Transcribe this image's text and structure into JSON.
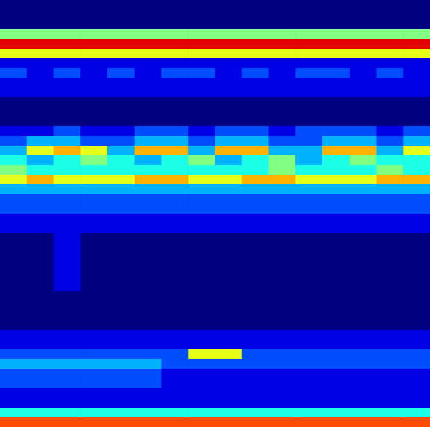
{
  "chart_data": {
    "type": "heatmap",
    "zlim": [
      0,
      10
    ],
    "tick_labels": false,
    "cells": [
      [
        0,
        0,
        0,
        0,
        0,
        0,
        0,
        0,
        0,
        0,
        0,
        0,
        0,
        0,
        0,
        0
      ],
      [
        0,
        0,
        0,
        0,
        0,
        0,
        0,
        0,
        0,
        0,
        0,
        0,
        0,
        0,
        0,
        0
      ],
      [
        0,
        0,
        0,
        0,
        0,
        0,
        0,
        0,
        0,
        0,
        0,
        0,
        0,
        0,
        0,
        0
      ],
      [
        5,
        5,
        5,
        5,
        5,
        5,
        5,
        5,
        5,
        5,
        5,
        5,
        5,
        5,
        5,
        5
      ],
      [
        9,
        9,
        9,
        9,
        9,
        9,
        9,
        9,
        9,
        9,
        9,
        9,
        9,
        9,
        9,
        9
      ],
      [
        6,
        6,
        6,
        6,
        6,
        6,
        6,
        6,
        6,
        6,
        6,
        6,
        6,
        6,
        6,
        6
      ],
      [
        1,
        1,
        1,
        1,
        1,
        1,
        1,
        1,
        1,
        1,
        1,
        1,
        1,
        1,
        1,
        1
      ],
      [
        2,
        1,
        2,
        1,
        2,
        1,
        2,
        2,
        1,
        2,
        1,
        2,
        2,
        1,
        2,
        1
      ],
      [
        1,
        1,
        1,
        1,
        1,
        1,
        1,
        1,
        1,
        1,
        1,
        1,
        1,
        1,
        1,
        1
      ],
      [
        1,
        1,
        1,
        1,
        1,
        1,
        1,
        1,
        1,
        1,
        1,
        1,
        1,
        1,
        1,
        1
      ],
      [
        0,
        0,
        0,
        0,
        0,
        0,
        0,
        0,
        0,
        0,
        0,
        0,
        0,
        0,
        0,
        0
      ],
      [
        0,
        0,
        0,
        0,
        0,
        0,
        0,
        0,
        0,
        0,
        0,
        0,
        0,
        0,
        0,
        0
      ],
      [
        0,
        0,
        0,
        0,
        0,
        0,
        0,
        0,
        0,
        0,
        0,
        0,
        0,
        0,
        0,
        0
      ],
      [
        1,
        1,
        2,
        1,
        1,
        2,
        2,
        1,
        2,
        2,
        1,
        2,
        2,
        2,
        1,
        2
      ],
      [
        2,
        3,
        3,
        2,
        2,
        3,
        3,
        2,
        3,
        3,
        2,
        2,
        3,
        3,
        2,
        3
      ],
      [
        3,
        6,
        7,
        6,
        3,
        7,
        7,
        3,
        7,
        7,
        3,
        3,
        7,
        7,
        3,
        6
      ],
      [
        4,
        3,
        4,
        5,
        4,
        3,
        4,
        5,
        3,
        4,
        5,
        3,
        4,
        5,
        4,
        4
      ],
      [
        5,
        4,
        4,
        4,
        4,
        4,
        4,
        4,
        4,
        4,
        5,
        4,
        4,
        4,
        5,
        4
      ],
      [
        6,
        7,
        6,
        6,
        6,
        7,
        7,
        6,
        6,
        7,
        7,
        6,
        6,
        6,
        7,
        7
      ],
      [
        3,
        3,
        3,
        3,
        3,
        3,
        3,
        3,
        3,
        3,
        3,
        3,
        3,
        3,
        3,
        3
      ],
      [
        2,
        2,
        2,
        2,
        2,
        2,
        2,
        2,
        2,
        2,
        2,
        2,
        2,
        2,
        2,
        2
      ],
      [
        2,
        2,
        2,
        2,
        2,
        2,
        2,
        2,
        2,
        2,
        2,
        2,
        2,
        2,
        2,
        2
      ],
      [
        1,
        1,
        1,
        1,
        1,
        1,
        1,
        1,
        1,
        1,
        1,
        1,
        1,
        1,
        1,
        1
      ],
      [
        1,
        1,
        1,
        1,
        1,
        1,
        1,
        1,
        1,
        1,
        1,
        1,
        1,
        1,
        1,
        1
      ],
      [
        0,
        0,
        1,
        0,
        0,
        0,
        0,
        0,
        0,
        0,
        0,
        0,
        0,
        0,
        0,
        0
      ],
      [
        0,
        0,
        1,
        0,
        0,
        0,
        0,
        0,
        0,
        0,
        0,
        0,
        0,
        0,
        0,
        0
      ],
      [
        0,
        0,
        1,
        0,
        0,
        0,
        0,
        0,
        0,
        0,
        0,
        0,
        0,
        0,
        0,
        0
      ],
      [
        0,
        0,
        1,
        0,
        0,
        0,
        0,
        0,
        0,
        0,
        0,
        0,
        0,
        0,
        0,
        0
      ],
      [
        0,
        0,
        1,
        0,
        0,
        0,
        0,
        0,
        0,
        0,
        0,
        0,
        0,
        0,
        0,
        0
      ],
      [
        0,
        0,
        1,
        0,
        0,
        0,
        0,
        0,
        0,
        0,
        0,
        0,
        0,
        0,
        0,
        0
      ],
      [
        0,
        0,
        0,
        0,
        0,
        0,
        0,
        0,
        0,
        0,
        0,
        0,
        0,
        0,
        0,
        0
      ],
      [
        0,
        0,
        0,
        0,
        0,
        0,
        0,
        0,
        0,
        0,
        0,
        0,
        0,
        0,
        0,
        0
      ],
      [
        0,
        0,
        0,
        0,
        0,
        0,
        0,
        0,
        0,
        0,
        0,
        0,
        0,
        0,
        0,
        0
      ],
      [
        0,
        0,
        0,
        0,
        0,
        0,
        0,
        0,
        0,
        0,
        0,
        0,
        0,
        0,
        0,
        0
      ],
      [
        1,
        1,
        1,
        1,
        1,
        1,
        1,
        1,
        1,
        1,
        1,
        1,
        1,
        1,
        1,
        1
      ],
      [
        1,
        1,
        1,
        1,
        1,
        1,
        1,
        1,
        1,
        1,
        1,
        1,
        1,
        1,
        1,
        1
      ],
      [
        2,
        2,
        2,
        2,
        2,
        2,
        2,
        6,
        6,
        2,
        2,
        2,
        2,
        2,
        2,
        2
      ],
      [
        3,
        3,
        3,
        3,
        3,
        3,
        2,
        2,
        2,
        2,
        2,
        2,
        2,
        2,
        2,
        2
      ],
      [
        2,
        2,
        2,
        2,
        2,
        2,
        1,
        1,
        1,
        1,
        1,
        1,
        1,
        1,
        1,
        1
      ],
      [
        2,
        2,
        2,
        2,
        2,
        2,
        1,
        1,
        1,
        1,
        1,
        1,
        1,
        1,
        1,
        1
      ],
      [
        1,
        1,
        1,
        1,
        1,
        1,
        1,
        1,
        1,
        1,
        1,
        1,
        1,
        1,
        1,
        1
      ],
      [
        1,
        1,
        1,
        1,
        1,
        1,
        1,
        1,
        1,
        1,
        1,
        1,
        1,
        1,
        1,
        1
      ],
      [
        4,
        4,
        4,
        4,
        4,
        4,
        4,
        4,
        4,
        4,
        4,
        4,
        4,
        4,
        4,
        4
      ],
      [
        8,
        8,
        8,
        8,
        8,
        8,
        8,
        8,
        8,
        8,
        8,
        8,
        8,
        8,
        8,
        8
      ]
    ]
  }
}
